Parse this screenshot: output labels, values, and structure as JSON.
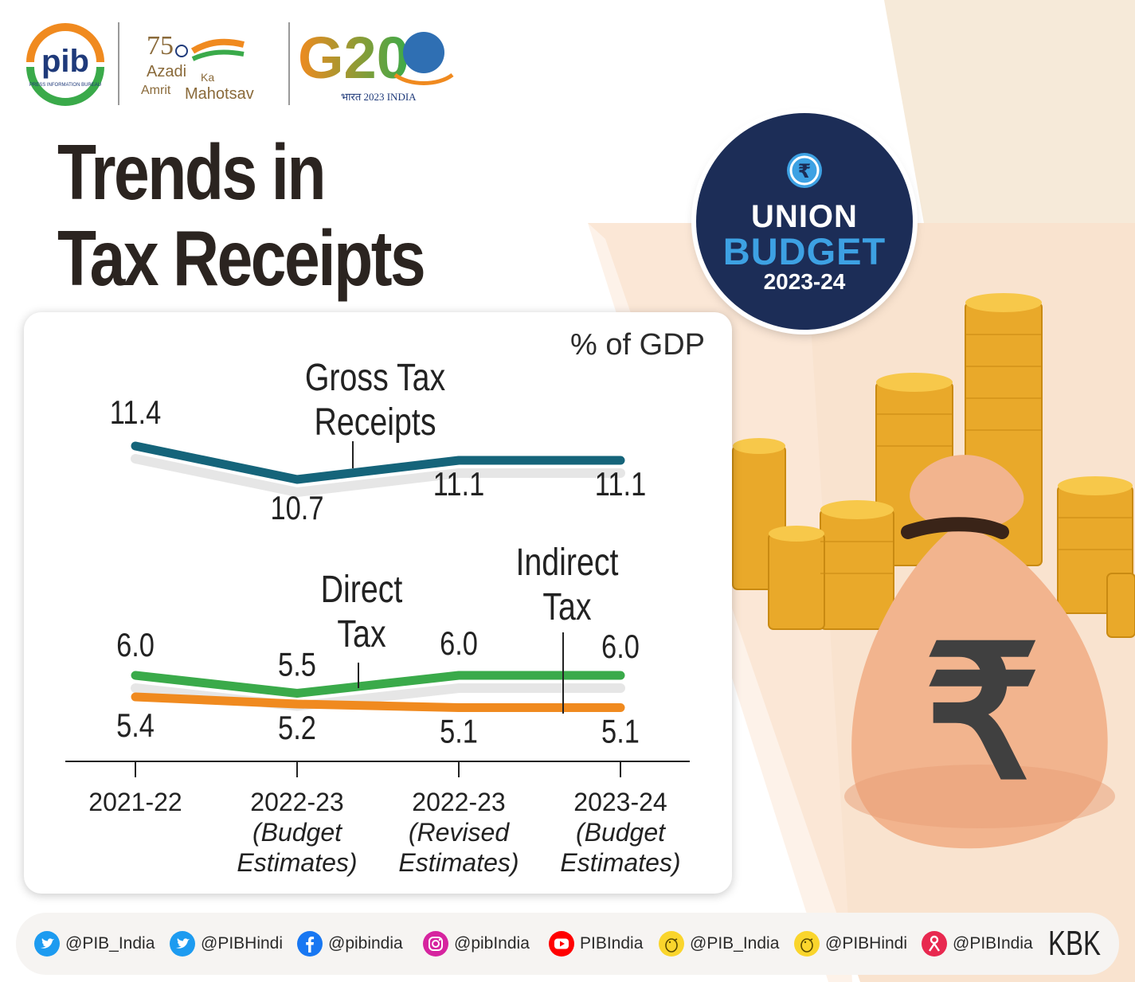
{
  "header": {
    "pib_logo_text": "pib",
    "pib_logo_subtext": "PRESS INFORMATION BUREAU",
    "akam_logo_number": "75",
    "akam_logo_text": [
      "Azadi",
      "Ka",
      "Amrit",
      "Mahotsav"
    ],
    "g20_logo_text": "G20",
    "g20_logo_subtext": "भारत 2023 INDIA"
  },
  "title": {
    "line1": "Trends in",
    "line2": "Tax Receipts"
  },
  "badge": {
    "line1": "UNION",
    "line2": "BUDGET",
    "line3": "2023-24",
    "icon": "rupee-icon"
  },
  "colors": {
    "gross": "#15647a",
    "direct": "#3aaa4a",
    "indirect": "#f08a1f",
    "title": "#2b2420",
    "badge_bg": "#1c2d57",
    "badge_accent": "#3da1e3"
  },
  "chart_data": {
    "type": "line",
    "unit_label": "% of GDP",
    "categories": [
      [
        "2021-22"
      ],
      [
        "2022-23",
        "(Budget",
        "Estimates)"
      ],
      [
        "2022-23",
        "(Revised",
        "Estimates)"
      ],
      [
        "2023-24",
        "(Budget",
        "Estimates)"
      ]
    ],
    "series": [
      {
        "name": "Gross Tax Receipts",
        "label_lines": [
          "Gross Tax",
          "Receipts"
        ],
        "values": [
          11.4,
          10.7,
          11.1,
          11.1
        ],
        "color": "#15647a"
      },
      {
        "name": "Direct Tax",
        "label_lines": [
          "Direct",
          "Tax"
        ],
        "values": [
          6.0,
          5.5,
          6.0,
          6.0
        ],
        "color": "#3aaa4a"
      },
      {
        "name": "Indirect Tax",
        "label_lines": [
          "Indirect",
          "Tax"
        ],
        "values": [
          5.4,
          5.2,
          5.1,
          5.1
        ],
        "color": "#f08a1f"
      }
    ],
    "data_labels": [
      [
        "11.4",
        "10.7",
        "11.1",
        "11.1"
      ],
      [
        "6.0",
        "5.5",
        "6.0",
        "6.0"
      ],
      [
        "5.4",
        "5.2",
        "5.1",
        "5.1"
      ]
    ]
  },
  "footer": {
    "handles": [
      {
        "icon": "twitter-icon",
        "text": "@PIB_India"
      },
      {
        "icon": "twitter-icon",
        "text": "@PIBHindi"
      },
      {
        "icon": "facebook-icon",
        "text": "@pibindia"
      },
      {
        "icon": "instagram-icon",
        "text": "@pibIndia"
      },
      {
        "icon": "youtube-icon",
        "text": "PIBIndia"
      },
      {
        "icon": "koo-icon",
        "text": "@PIB_India"
      },
      {
        "icon": "koo-icon",
        "text": "@PIBHindi"
      },
      {
        "icon": "sharechat-icon",
        "text": "@PIBIndia"
      }
    ],
    "signature": "KBK"
  }
}
